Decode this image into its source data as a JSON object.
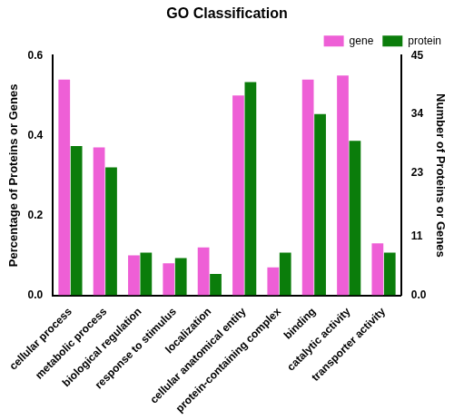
{
  "chart_data": {
    "type": "bar",
    "title": "GO Classification",
    "y_label": "Percentage of Proteins or Genes",
    "y2_label": "Number of Proteins or Genes",
    "categories": [
      "cellular process",
      "metabolic process",
      "biological regulation",
      "response to stimulus",
      "localization",
      "cellular anatomical entity",
      "protein-containing complex",
      "binding",
      "catalytic activity",
      "transporter activity"
    ],
    "series": [
      {
        "name": "gene",
        "color": "#ee5fd6",
        "values": [
          0.54,
          0.37,
          0.1,
          0.08,
          0.12,
          0.5,
          0.07,
          0.54,
          0.55,
          0.13
        ]
      },
      {
        "name": "protein",
        "color": "#0b7d0b",
        "axis": "y2",
        "values": [
          28,
          24,
          8,
          7,
          4,
          40,
          8,
          34,
          29,
          8
        ]
      }
    ],
    "ylim": [
      0,
      0.6
    ],
    "yticks": [
      {
        "value": 0,
        "label": "0.0"
      },
      {
        "value": 0.2,
        "label": "0.2"
      },
      {
        "value": 0.4,
        "label": "0.4"
      },
      {
        "value": 0.6,
        "label": "0.6"
      }
    ],
    "y2lim": [
      0,
      45
    ],
    "y2ticks": [
      {
        "value": 0,
        "label": "0.0"
      },
      11,
      23,
      34,
      45
    ],
    "grid": false,
    "legend": "upper right"
  }
}
